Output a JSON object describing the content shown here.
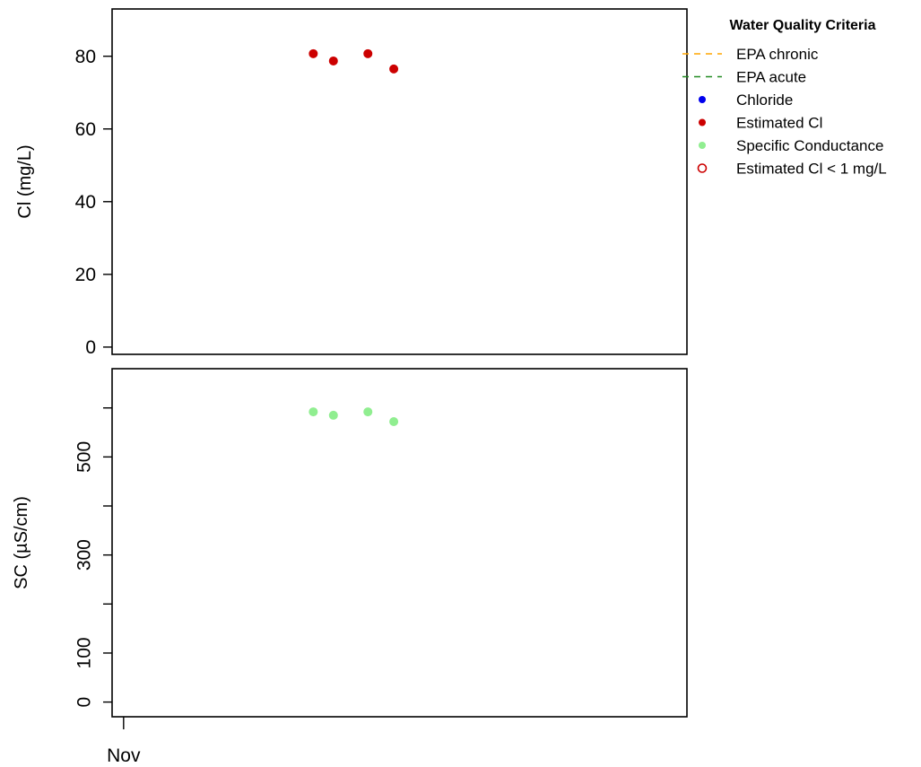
{
  "chart_data": [
    {
      "type": "scatter",
      "panel": "chloride",
      "ylabel": "Cl (mg/L)",
      "ylim": [
        -2,
        93
      ],
      "yticks": [
        0,
        20,
        40,
        60,
        80
      ],
      "ytick_labels": [
        "0",
        "20",
        "40",
        "60",
        "80"
      ],
      "x": [
        "2024-01-06",
        "2024-01-13",
        "2024-01-25",
        "2024-02-03"
      ],
      "series": [
        {
          "name": "Estimated Cl",
          "color": "#cc0000",
          "values": [
            80.7,
            78.7,
            80.7,
            76.5
          ]
        }
      ]
    },
    {
      "type": "scatter",
      "panel": "specific-conductance",
      "ylabel": "SC (µS/cm)",
      "ylim": [
        -30,
        680
      ],
      "yticks": [
        0,
        100,
        200,
        300,
        400,
        500,
        600
      ],
      "ytick_labels": [
        "0",
        "100",
        "",
        "300",
        "",
        "500",
        ""
      ],
      "x": [
        "2024-01-06",
        "2024-01-13",
        "2024-01-25",
        "2024-02-03"
      ],
      "series": [
        {
          "name": "Specific Conductance",
          "color": "#90ee90",
          "values": [
            592,
            585,
            592,
            572
          ]
        }
      ],
      "xticks": [
        {
          "date": "2023-11-01",
          "label": "Nov"
        }
      ]
    }
  ],
  "legend": {
    "title": "Water Quality Criteria",
    "placement": "right-top",
    "items": [
      {
        "label": "EPA chronic",
        "kind": "dashed-line",
        "color": "#ffa500"
      },
      {
        "label": "EPA acute",
        "kind": "dashed-line",
        "color": "#228b22"
      },
      {
        "label": "Chloride",
        "kind": "filled-dot",
        "color": "#0000ee"
      },
      {
        "label": "Estimated Cl",
        "kind": "filled-dot",
        "color": "#cc0000"
      },
      {
        "label": "Specific Conductance",
        "kind": "filled-dot",
        "color": "#90ee90"
      },
      {
        "label": "Estimated Cl < 1 mg/L",
        "kind": "open-dot",
        "color": "#cc0000"
      }
    ]
  }
}
